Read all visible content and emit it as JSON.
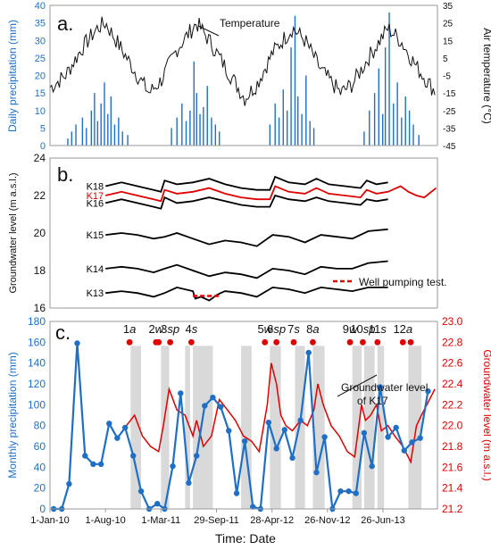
{
  "figure": {
    "xlabel": "Time: Date"
  },
  "chart_data": [
    {
      "panel": "a.",
      "type": "bar+line",
      "ylabel_left": "Daily precipitation (mm)",
      "ylabel_right": "Air temperature (°C)",
      "ylim_left": [
        0,
        40
      ],
      "ylim_right": [
        -45,
        35
      ],
      "yticks_left": [
        "0",
        "5",
        "10",
        "15",
        "20",
        "25",
        "30",
        "35",
        "40"
      ],
      "yticks_right": [
        "-45",
        "-35",
        "-25",
        "-15",
        "-5",
        "5",
        "15",
        "25",
        "35"
      ],
      "x_range": [
        "2010-01-01",
        "2014-01-20"
      ],
      "annotation": "Temperature",
      "colors": {
        "precip": "#1f6fc5",
        "temp": "#111111"
      },
      "precip_series": {
        "name": "Daily precipitation",
        "x": [
          "2010-03-10",
          "2010-03-25",
          "2010-04-10",
          "2010-05-05",
          "2010-05-20",
          "2010-06-08",
          "2010-06-20",
          "2010-07-02",
          "2010-07-15",
          "2010-07-28",
          "2010-08-10",
          "2010-08-22",
          "2010-09-05",
          "2010-09-20",
          "2010-10-05",
          "2010-10-25",
          "2011-04-10",
          "2011-05-01",
          "2011-05-20",
          "2011-06-05",
          "2011-06-20",
          "2011-07-05",
          "2011-07-15",
          "2011-07-28",
          "2011-08-10",
          "2011-08-25",
          "2011-09-10",
          "2011-09-25",
          "2011-10-10",
          "2012-04-20",
          "2012-05-10",
          "2012-05-25",
          "2012-06-10",
          "2012-06-25",
          "2012-07-10",
          "2012-07-25",
          "2012-08-05",
          "2012-08-20",
          "2012-09-05",
          "2012-09-20",
          "2012-10-05",
          "2013-04-15",
          "2013-05-05",
          "2013-05-25",
          "2013-06-10",
          "2013-06-25",
          "2013-07-05",
          "2013-07-20",
          "2013-08-05",
          "2013-08-20",
          "2013-09-05",
          "2013-09-20",
          "2013-10-05",
          "2013-10-20",
          "2013-11-10"
        ],
        "values": [
          2,
          4,
          6,
          8,
          5,
          10,
          15,
          7,
          12,
          18,
          9,
          14,
          6,
          8,
          4,
          3,
          5,
          8,
          12,
          7,
          10,
          24,
          15,
          9,
          11,
          17,
          8,
          6,
          4,
          6,
          12,
          8,
          16,
          10,
          28,
          37,
          14,
          9,
          20,
          7,
          5,
          4,
          10,
          15,
          22,
          9,
          28,
          38,
          12,
          18,
          8,
          14,
          10,
          6,
          3
        ]
      },
      "temperature_series": {
        "name": "Temperature",
        "x": [
          "2010-01-01",
          "2010-03-01",
          "2010-05-01",
          "2010-07-01",
          "2010-08-01",
          "2010-10-01",
          "2010-12-01",
          "2011-01-15",
          "2011-03-01",
          "2011-05-01",
          "2011-07-15",
          "2011-09-01",
          "2011-11-01",
          "2012-01-15",
          "2012-03-01",
          "2012-05-01",
          "2012-07-15",
          "2012-09-01",
          "2012-11-01",
          "2013-01-15",
          "2013-03-01",
          "2013-05-01",
          "2013-07-15",
          "2013-09-01",
          "2013-11-01",
          "2014-01-15"
        ],
        "values": [
          -12,
          -5,
          10,
          22,
          25,
          10,
          -5,
          -15,
          -8,
          10,
          25,
          15,
          0,
          -18,
          -10,
          8,
          22,
          15,
          -2,
          -15,
          -10,
          5,
          22,
          15,
          0,
          -15
        ]
      }
    },
    {
      "panel": "b.",
      "type": "line",
      "ylabel": "Groundwater level (m a.s.l.)",
      "ylim": [
        16,
        24
      ],
      "yticks": [
        "16",
        "18",
        "20",
        "22",
        "24"
      ],
      "x_range": [
        "2010-01-01",
        "2014-01-20"
      ],
      "legend": {
        "label": "Well pumping test.",
        "placement": "bottom-right",
        "color": "#e00000"
      },
      "pumping_test": {
        "x": [
          "2011-07-01",
          "2011-10-10"
        ],
        "y": 16.5
      },
      "series": [
        {
          "name": "K18",
          "color": "#000000",
          "x": [
            "2010-08-01",
            "2010-10-01",
            "2010-12-01",
            "2011-02-01",
            "2011-03-01",
            "2011-03-15",
            "2011-05-01",
            "2011-07-01",
            "2011-09-01",
            "2011-11-01",
            "2012-01-01",
            "2012-03-01",
            "2012-04-20",
            "2012-05-10",
            "2012-07-01",
            "2012-09-01",
            "2012-10-15",
            "2012-12-01",
            "2013-02-01",
            "2013-04-01",
            "2013-04-25",
            "2013-06-01",
            "2013-07-15"
          ],
          "values": [
            22.5,
            22.7,
            22.5,
            22.3,
            22.2,
            22.8,
            22.6,
            22.7,
            22.9,
            22.6,
            22.4,
            22.3,
            22.3,
            23.0,
            22.7,
            22.6,
            22.9,
            22.6,
            22.5,
            22.4,
            22.8,
            22.6,
            22.7
          ]
        },
        {
          "name": "K17",
          "color": "#e00000",
          "x": [
            "2010-08-01",
            "2010-10-01",
            "2010-12-01",
            "2011-02-01",
            "2011-03-01",
            "2011-03-15",
            "2011-05-01",
            "2011-07-01",
            "2011-09-01",
            "2011-11-01",
            "2012-01-01",
            "2012-03-01",
            "2012-04-20",
            "2012-05-10",
            "2012-07-01",
            "2012-09-01",
            "2012-10-15",
            "2012-12-01",
            "2013-02-01",
            "2013-04-01",
            "2013-04-25",
            "2013-06-01",
            "2013-07-15",
            "2013-09-01",
            "2013-10-01",
            "2013-11-01",
            "2013-12-01",
            "2014-01-15"
          ],
          "values": [
            22.0,
            22.2,
            22.0,
            21.8,
            21.7,
            22.3,
            22.1,
            22.2,
            22.4,
            22.1,
            21.9,
            21.8,
            21.8,
            22.5,
            22.2,
            22.1,
            22.4,
            22.1,
            22.0,
            21.9,
            22.3,
            22.1,
            22.2,
            22.5,
            22.2,
            22.0,
            21.9,
            22.4
          ]
        },
        {
          "name": "K16",
          "color": "#000000",
          "x": [
            "2010-08-01",
            "2010-10-01",
            "2010-12-01",
            "2011-02-01",
            "2011-03-01",
            "2011-03-15",
            "2011-05-01",
            "2011-07-01",
            "2011-09-01",
            "2011-11-01",
            "2012-01-01",
            "2012-03-01",
            "2012-04-20",
            "2012-05-10",
            "2012-07-01",
            "2012-09-01",
            "2012-10-15",
            "2012-12-01",
            "2013-02-01",
            "2013-04-01",
            "2013-04-25",
            "2013-06-01",
            "2013-07-15"
          ],
          "values": [
            21.6,
            21.8,
            21.6,
            21.4,
            21.3,
            21.9,
            21.6,
            21.7,
            21.9,
            21.7,
            21.5,
            21.4,
            21.4,
            22.0,
            21.8,
            21.7,
            21.9,
            21.7,
            21.6,
            21.5,
            21.8,
            21.7,
            21.8
          ]
        },
        {
          "name": "K15",
          "color": "#000000",
          "x": [
            "2010-08-01",
            "2010-10-01",
            "2010-12-01",
            "2011-02-01",
            "2011-03-15",
            "2011-05-01",
            "2011-07-01",
            "2011-09-01",
            "2011-11-01",
            "2012-01-01",
            "2012-03-01",
            "2012-05-01",
            "2012-07-01",
            "2012-09-01",
            "2012-11-01",
            "2013-01-01",
            "2013-03-01",
            "2013-05-01",
            "2013-07-15"
          ],
          "values": [
            19.9,
            20.0,
            19.9,
            19.7,
            19.8,
            20.0,
            19.7,
            19.4,
            19.6,
            19.5,
            19.3,
            19.9,
            19.8,
            19.5,
            19.9,
            19.8,
            19.7,
            20.1,
            20.2
          ]
        },
        {
          "name": "K14",
          "color": "#000000",
          "x": [
            "2010-08-01",
            "2010-10-01",
            "2010-12-01",
            "2011-02-01",
            "2011-03-15",
            "2011-05-01",
            "2011-07-01",
            "2011-09-01",
            "2011-11-01",
            "2012-01-01",
            "2012-03-01",
            "2012-05-01",
            "2012-07-01",
            "2012-09-01",
            "2012-11-01",
            "2013-01-01",
            "2013-03-01",
            "2013-05-01",
            "2013-07-15"
          ],
          "values": [
            18.1,
            18.2,
            18.1,
            17.9,
            18.1,
            18.3,
            18.0,
            17.7,
            17.9,
            17.8,
            17.6,
            18.1,
            18.0,
            17.8,
            18.2,
            18.1,
            18.1,
            18.4,
            18.5
          ]
        },
        {
          "name": "K13",
          "color": "#000000",
          "x": [
            "2010-08-01",
            "2010-10-01",
            "2010-12-01",
            "2011-02-01",
            "2011-03-15",
            "2011-05-01",
            "2011-07-01",
            "2011-07-10",
            "2011-08-01",
            "2011-09-01",
            "2011-10-01",
            "2011-10-15",
            "2011-11-01",
            "2012-01-01",
            "2012-03-01",
            "2012-05-01",
            "2012-07-01",
            "2012-09-01",
            "2012-11-01",
            "2013-01-01",
            "2013-03-01",
            "2013-05-01",
            "2013-07-15"
          ],
          "values": [
            16.8,
            16.9,
            16.8,
            16.6,
            16.8,
            17.1,
            16.9,
            16.5,
            16.6,
            16.4,
            16.7,
            16.8,
            16.9,
            16.8,
            16.6,
            17.1,
            17.0,
            16.8,
            17.1,
            17.0,
            16.9,
            17.1,
            17.1
          ]
        }
      ]
    },
    {
      "panel": "c.",
      "type": "line",
      "ylabel_left": "Monthly precipitation (mm)",
      "ylabel_right": "Groundwater level (m a.s.l.)",
      "ylim_left": [
        0,
        180
      ],
      "ylim_right": [
        21.2,
        23.0
      ],
      "yticks_left": [
        "0",
        "20",
        "40",
        "60",
        "80",
        "100",
        "120",
        "140",
        "160",
        "180"
      ],
      "yticks_right": [
        "21.2",
        "21.4",
        "21.6",
        "21.8",
        "22.0",
        "22.2",
        "22.4",
        "22.6",
        "22.8",
        "23.0"
      ],
      "x_range": [
        "2010-01-01",
        "2014-01-20"
      ],
      "x_tick_labels": [
        "1-Jan-10",
        "1-Aug-10",
        "1-Mar-11",
        "29-Sep-11",
        "28-Apr-12",
        "26-Nov-12",
        "26-Jun-13"
      ],
      "x_tick_dates": [
        "2010-01-01",
        "2010-08-01",
        "2011-03-01",
        "2011-09-29",
        "2012-04-28",
        "2012-11-26",
        "2013-06-26"
      ],
      "annotation": "Groundwater level of K17",
      "colors": {
        "monthly": "#1f6fc5",
        "gw": "#e00000",
        "shade": "#d9d9d9"
      },
      "events": [
        {
          "num": "1",
          "tag": "a",
          "dots": [
            "2010-11-01"
          ],
          "shade": [
            "2010-11-05",
            "2010-12-15"
          ]
        },
        {
          "num": "2",
          "tag": "w",
          "dots": [
            "2011-02-10",
            "2011-02-20"
          ],
          "shade": [
            "2011-03-01",
            "2011-04-01"
          ]
        },
        {
          "num": "3",
          "tag": "sp",
          "dots": [
            "2011-04-05"
          ],
          "shade": [
            "2011-06-01",
            "2011-06-20"
          ]
        },
        {
          "num": "4",
          "tag": "s",
          "dots": [
            "2011-06-25"
          ],
          "shade": [
            "2011-07-01",
            "2011-09-15"
          ]
        },
        {
          "num": "5",
          "tag": "w",
          "dots": [
            "2012-04-01"
          ],
          "shade": [
            "2012-01-01",
            "2012-02-10"
          ]
        },
        {
          "num": "6",
          "tag": "sp",
          "dots": [
            "2012-05-15"
          ],
          "shade": [
            "2012-04-20",
            "2012-06-01"
          ]
        },
        {
          "num": "7",
          "tag": "s",
          "dots": [
            "2012-07-20"
          ],
          "shade": [
            "2012-07-25",
            "2012-09-01"
          ]
        },
        {
          "num": "8",
          "tag": "a",
          "dots": [
            "2012-10-01"
          ],
          "shade": [
            "2012-10-01",
            "2012-11-15"
          ]
        },
        {
          "num": "9",
          "tag": "w",
          "dots": [
            "2013-02-20"
          ],
          "shade": [
            "2013-03-01",
            "2013-04-05"
          ]
        },
        {
          "num": "10",
          "tag": "sp",
          "dots": [
            "2013-04-10"
          ],
          "shade": [
            "2013-04-15",
            "2013-05-25"
          ]
        },
        {
          "num": "11",
          "tag": "s",
          "dots": [
            "2013-06-05"
          ],
          "shade": [
            "2013-06-05",
            "2013-06-30"
          ]
        },
        {
          "num": "12",
          "tag": "a",
          "dots": [
            "2013-09-10",
            "2013-10-10"
          ],
          "shade": [
            "2013-10-01",
            "2013-11-20"
          ]
        }
      ],
      "monthly_precip": {
        "name": "Monthly precipitation",
        "x": [
          "2010-01-15",
          "2010-02-15",
          "2010-03-15",
          "2010-04-15",
          "2010-05-15",
          "2010-06-15",
          "2010-07-15",
          "2010-08-15",
          "2010-09-15",
          "2010-10-15",
          "2010-11-15",
          "2010-12-15",
          "2011-01-15",
          "2011-02-15",
          "2011-03-15",
          "2011-04-15",
          "2011-05-15",
          "2011-06-15",
          "2011-07-15",
          "2011-08-15",
          "2011-09-15",
          "2011-10-15",
          "2011-11-15",
          "2011-12-15",
          "2012-01-15",
          "2012-02-15",
          "2012-03-15",
          "2012-04-15",
          "2012-05-15",
          "2012-06-15",
          "2012-07-15",
          "2012-08-15",
          "2012-09-15",
          "2012-10-15",
          "2012-11-15",
          "2012-12-15",
          "2013-01-15",
          "2013-02-15",
          "2013-03-15",
          "2013-04-15",
          "2013-05-15",
          "2013-06-15",
          "2013-07-15",
          "2013-08-15",
          "2013-09-15",
          "2013-10-15",
          "2013-11-15",
          "2013-12-15"
        ],
        "values": [
          0,
          0,
          24,
          159,
          51,
          43,
          43,
          82,
          68,
          78,
          51,
          17,
          0,
          5,
          0,
          41,
          111,
          25,
          51,
          99,
          107,
          98,
          75,
          15,
          65,
          2,
          0,
          83,
          58,
          76,
          49,
          85,
          150,
          35,
          69,
          0,
          17,
          17,
          15,
          73,
          41,
          117,
          69,
          78,
          56,
          64,
          68,
          113
        ]
      },
      "gw_k17": {
        "name": "Groundwater level of K17",
        "x": [
          "2010-10-20",
          "2010-11-20",
          "2010-12-20",
          "2011-01-20",
          "2011-02-20",
          "2011-03-10",
          "2011-04-01",
          "2011-05-01",
          "2011-06-01",
          "2011-07-01",
          "2011-07-15",
          "2011-08-10",
          "2011-09-10",
          "2011-10-10",
          "2011-11-10",
          "2011-12-10",
          "2012-01-10",
          "2012-02-10",
          "2012-03-10",
          "2012-04-10",
          "2012-04-25",
          "2012-05-15",
          "2012-06-01",
          "2012-06-20",
          "2012-07-15",
          "2012-08-15",
          "2012-09-10",
          "2012-10-05",
          "2012-10-20",
          "2012-11-10",
          "2012-12-10",
          "2013-01-10",
          "2013-02-10",
          "2013-03-10",
          "2013-04-05",
          "2013-04-20",
          "2013-05-10",
          "2013-06-01",
          "2013-06-20",
          "2013-07-15",
          "2013-08-10",
          "2013-09-10",
          "2013-10-10",
          "2013-11-01",
          "2013-11-20",
          "2014-01-10"
        ],
        "values": [
          22.0,
          22.1,
          21.9,
          21.8,
          21.75,
          22.0,
          22.35,
          22.15,
          22.1,
          21.9,
          22.05,
          21.8,
          21.9,
          22.25,
          22.15,
          22.05,
          21.9,
          21.85,
          21.75,
          22.2,
          22.6,
          22.4,
          22.1,
          22.0,
          21.95,
          22.05,
          22.0,
          22.15,
          22.4,
          22.2,
          22.0,
          21.9,
          21.75,
          21.7,
          22.2,
          22.05,
          22.1,
          22.2,
          21.95,
          22.0,
          21.9,
          21.8,
          21.65,
          22.0,
          22.1,
          22.35
        ]
      }
    }
  ]
}
